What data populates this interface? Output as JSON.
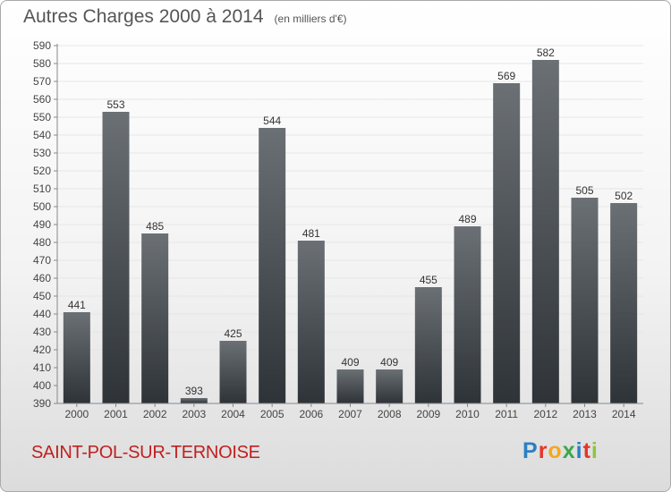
{
  "header": {
    "title": "Autres Charges 2000 à 2014",
    "unit": "(en milliers d'€)"
  },
  "footer": {
    "city": "SAINT-POL-SUR-TERNOISE"
  },
  "logo": {
    "letters": [
      "P",
      "r",
      "o",
      "x",
      "i",
      "t",
      "i"
    ],
    "colors": [
      "#2a7fc4",
      "#e8342a",
      "#f4a81d",
      "#3aa84a",
      "#2a7fc4",
      "#e8342a",
      "#8cc63f"
    ]
  },
  "chart_data": {
    "type": "bar",
    "categories": [
      "2000",
      "2001",
      "2002",
      "2003",
      "2004",
      "2005",
      "2006",
      "2007",
      "2008",
      "2009",
      "2010",
      "2011",
      "2012",
      "2013",
      "2014"
    ],
    "values": [
      441,
      553,
      485,
      393,
      425,
      544,
      481,
      409,
      409,
      455,
      489,
      569,
      582,
      505,
      502
    ],
    "title": "Autres Charges 2000 à 2014",
    "xlabel": "",
    "ylabel": "",
    "ylim": [
      390,
      590
    ],
    "yticks": [
      390,
      400,
      410,
      420,
      430,
      440,
      450,
      460,
      470,
      480,
      490,
      500,
      510,
      520,
      530,
      540,
      550,
      560,
      570,
      580,
      590
    ],
    "grid": true,
    "colors": {
      "bar_top": "#6b7075",
      "bar_bottom": "#2e3338",
      "grid": "#e6e6e6",
      "axis": "#888888"
    }
  }
}
